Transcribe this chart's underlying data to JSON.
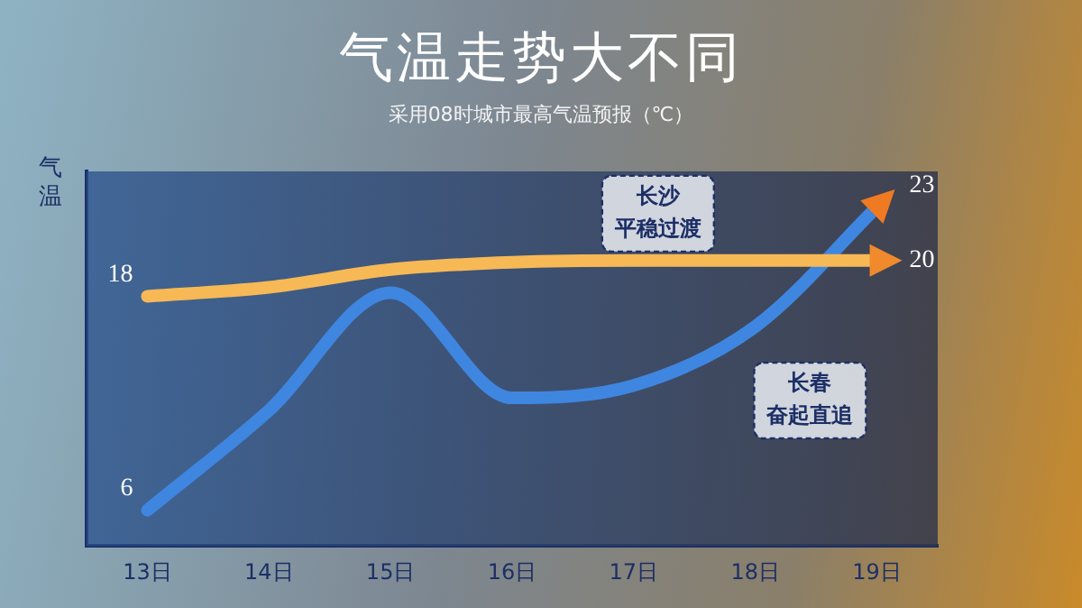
{
  "chart_data": {
    "type": "line",
    "title": "气温走势大不同",
    "subtitle": "采用08时城市最高气温预报（℃）",
    "ylabel": "气温",
    "categories": [
      "13日",
      "14日",
      "15日",
      "16日",
      "17日",
      "18日",
      "19日"
    ],
    "series": [
      {
        "name": "长沙",
        "color": "#f7b955",
        "values": [
          18,
          18.5,
          19.5,
          19.9,
          20,
          20,
          20
        ],
        "value_labels": [
          "18",
          null,
          null,
          null,
          null,
          null,
          "20"
        ]
      },
      {
        "name": "长春",
        "color": "#3f86e0",
        "values": [
          6,
          11.6,
          18.2,
          12.3,
          13,
          16.3,
          23
        ],
        "value_labels": [
          "6",
          null,
          null,
          null,
          null,
          null,
          "23"
        ]
      }
    ],
    "annotations": [
      "平稳过渡",
      "奋起直追"
    ],
    "ylim": [
      4,
      25
    ],
    "grid": false,
    "legend": false
  }
}
